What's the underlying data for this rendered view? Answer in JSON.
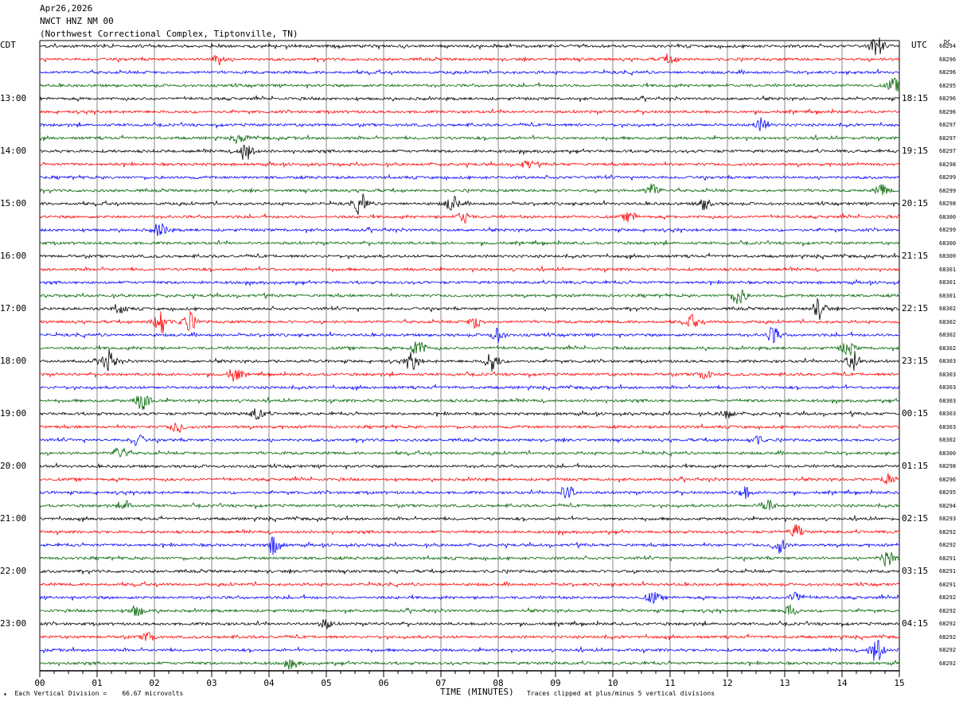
{
  "header": {
    "date": "Apr26,2026",
    "station": "NWCT HNZ NM 00",
    "location": "(Northwest Correctional Complex, Tiptonville, TN)"
  },
  "left_tz": "CDT",
  "right_tz": "UTC",
  "dc_header": "DC",
  "chart_data": {
    "type": "line",
    "xlabel": "TIME (MINUTES)",
    "xlim": [
      0,
      15
    ],
    "x_ticks": [
      "00",
      "01",
      "02",
      "03",
      "04",
      "05",
      "06",
      "07",
      "08",
      "09",
      "10",
      "11",
      "12",
      "13",
      "14",
      "15"
    ],
    "left_hour_labels": [
      {
        "label": "13:00",
        "row": 4
      },
      {
        "label": "14:00",
        "row": 8
      },
      {
        "label": "15:00",
        "row": 12
      },
      {
        "label": "16:00",
        "row": 16
      },
      {
        "label": "17:00",
        "row": 20
      },
      {
        "label": "18:00",
        "row": 24
      },
      {
        "label": "19:00",
        "row": 28
      },
      {
        "label": "20:00",
        "row": 32
      },
      {
        "label": "21:00",
        "row": 36
      },
      {
        "label": "22:00",
        "row": 40
      },
      {
        "label": "23:00",
        "row": 44
      }
    ],
    "right_hour_labels": [
      {
        "label": "18:15",
        "row": 4
      },
      {
        "label": "19:15",
        "row": 8
      },
      {
        "label": "20:15",
        "row": 12
      },
      {
        "label": "21:15",
        "row": 16
      },
      {
        "label": "22:15",
        "row": 20
      },
      {
        "label": "23:15",
        "row": 24
      },
      {
        "label": "00:15",
        "row": 28
      },
      {
        "label": "01:15",
        "row": 32
      },
      {
        "label": "02:15",
        "row": 36
      },
      {
        "label": "03:15",
        "row": 40
      },
      {
        "label": "04:15",
        "row": 44
      }
    ],
    "trace_colors": [
      "#000000",
      "#ff0000",
      "#0000ff",
      "#006400"
    ],
    "dc_values": [
      "68294",
      "68296",
      "68296",
      "68295",
      "68296",
      "68296",
      "68297",
      "68297",
      "68297",
      "68298",
      "68299",
      "68299",
      "68298",
      "68300",
      "68299",
      "68300",
      "68300",
      "68301",
      "68301",
      "68301",
      "68302",
      "68302",
      "68302",
      "68302",
      "68303",
      "68303",
      "68303",
      "68303",
      "68303",
      "68303",
      "68302",
      "68300",
      "68298",
      "68296",
      "68295",
      "68294",
      "68293",
      "68292",
      "68292",
      "68291",
      "68291",
      "68291",
      "68292",
      "68292",
      "68292",
      "68292",
      "68292",
      "68292"
    ],
    "events": [
      {
        "row": 0,
        "minute": 14.6,
        "amp": 1.0
      },
      {
        "row": 1,
        "minute": 3.1,
        "amp": 0.5
      },
      {
        "row": 1,
        "minute": 11.0,
        "amp": 0.4
      },
      {
        "row": 3,
        "minute": 14.9,
        "amp": 0.6
      },
      {
        "row": 6,
        "minute": 12.6,
        "amp": 0.6
      },
      {
        "row": 7,
        "minute": 3.5,
        "amp": 0.4
      },
      {
        "row": 8,
        "minute": 3.6,
        "amp": 0.9
      },
      {
        "row": 9,
        "minute": 8.5,
        "amp": 0.35
      },
      {
        "row": 11,
        "minute": 10.7,
        "amp": 0.6
      },
      {
        "row": 11,
        "minute": 14.7,
        "amp": 0.5
      },
      {
        "row": 12,
        "minute": 5.6,
        "amp": 0.9
      },
      {
        "row": 12,
        "minute": 7.2,
        "amp": 0.7
      },
      {
        "row": 12,
        "minute": 11.6,
        "amp": 0.5
      },
      {
        "row": 13,
        "minute": 7.4,
        "amp": 0.5
      },
      {
        "row": 13,
        "minute": 10.3,
        "amp": 0.4
      },
      {
        "row": 14,
        "minute": 2.1,
        "amp": 0.6
      },
      {
        "row": 19,
        "minute": 12.2,
        "amp": 0.9
      },
      {
        "row": 20,
        "minute": 13.6,
        "amp": 0.9
      },
      {
        "row": 20,
        "minute": 1.4,
        "amp": 0.4
      },
      {
        "row": 21,
        "minute": 2.1,
        "amp": 1.4
      },
      {
        "row": 21,
        "minute": 2.6,
        "amp": 0.9
      },
      {
        "row": 21,
        "minute": 7.6,
        "amp": 0.5
      },
      {
        "row": 21,
        "minute": 11.4,
        "amp": 0.5
      },
      {
        "row": 22,
        "minute": 8.0,
        "amp": 0.6
      },
      {
        "row": 22,
        "minute": 12.8,
        "amp": 0.7
      },
      {
        "row": 23,
        "minute": 6.6,
        "amp": 0.8
      },
      {
        "row": 23,
        "minute": 14.1,
        "amp": 0.6
      },
      {
        "row": 24,
        "minute": 1.2,
        "amp": 1.0
      },
      {
        "row": 24,
        "minute": 6.5,
        "amp": 0.8
      },
      {
        "row": 24,
        "minute": 7.9,
        "amp": 0.9
      },
      {
        "row": 24,
        "minute": 14.2,
        "amp": 0.9
      },
      {
        "row": 25,
        "minute": 3.4,
        "amp": 0.6
      },
      {
        "row": 25,
        "minute": 11.6,
        "amp": 0.4
      },
      {
        "row": 27,
        "minute": 1.8,
        "amp": 0.9
      },
      {
        "row": 28,
        "minute": 3.8,
        "amp": 0.6
      },
      {
        "row": 28,
        "minute": 12.0,
        "amp": 0.4
      },
      {
        "row": 29,
        "minute": 2.4,
        "amp": 0.5
      },
      {
        "row": 30,
        "minute": 1.7,
        "amp": 0.5
      },
      {
        "row": 30,
        "minute": 12.5,
        "amp": 0.4
      },
      {
        "row": 31,
        "minute": 1.4,
        "amp": 0.6
      },
      {
        "row": 33,
        "minute": 14.8,
        "amp": 0.5
      },
      {
        "row": 34,
        "minute": 9.2,
        "amp": 0.7
      },
      {
        "row": 34,
        "minute": 12.3,
        "amp": 0.5
      },
      {
        "row": 35,
        "minute": 1.5,
        "amp": 0.4
      },
      {
        "row": 35,
        "minute": 12.7,
        "amp": 0.6
      },
      {
        "row": 37,
        "minute": 13.2,
        "amp": 0.6
      },
      {
        "row": 38,
        "minute": 4.1,
        "amp": 0.9
      },
      {
        "row": 38,
        "minute": 12.9,
        "amp": 0.7
      },
      {
        "row": 39,
        "minute": 14.8,
        "amp": 0.8
      },
      {
        "row": 42,
        "minute": 10.7,
        "amp": 0.5
      },
      {
        "row": 42,
        "minute": 13.2,
        "amp": 0.5
      },
      {
        "row": 43,
        "minute": 1.7,
        "amp": 0.5
      },
      {
        "row": 43,
        "minute": 13.1,
        "amp": 0.5
      },
      {
        "row": 44,
        "minute": 5.0,
        "amp": 0.4
      },
      {
        "row": 45,
        "minute": 1.9,
        "amp": 0.4
      },
      {
        "row": 46,
        "minute": 14.6,
        "amp": 1.2
      },
      {
        "row": 47,
        "minute": 4.4,
        "amp": 0.4
      }
    ]
  },
  "footer": {
    "left": "Each Vertical Division =    66.67 microvolts",
    "right": "Traces clipped at plus/minus 5 vertical divisions"
  }
}
